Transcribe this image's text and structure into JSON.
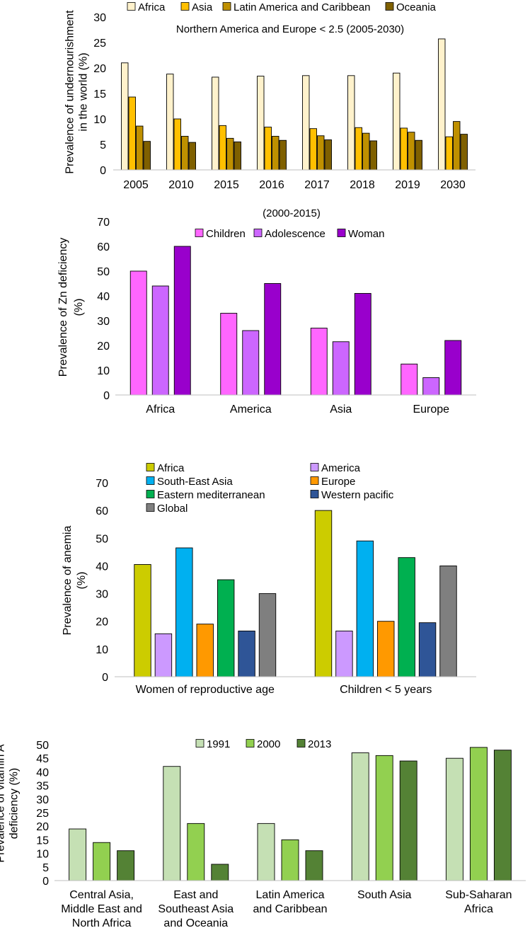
{
  "chart_data": [
    {
      "type": "bar",
      "id": "undernourishment",
      "title": "",
      "annotation": "Northern America and Europe  < 2.5 (2005-2030)",
      "ylabel": "Prevalence of undernourishment in the world (%)",
      "ylabel_lines": [
        "Prevalence of undernourishment",
        "in the world (%)"
      ],
      "xlabel": "",
      "ylim": [
        0,
        30
      ],
      "yticks": [
        0,
        5,
        10,
        15,
        20,
        25,
        30
      ],
      "categories": [
        "2005",
        "2010",
        "2015",
        "2016",
        "2017",
        "2018",
        "2019",
        "2030"
      ],
      "series": [
        {
          "name": "Africa",
          "color": "#FFF2CC",
          "values": [
            21.0,
            18.8,
            18.2,
            18.4,
            18.5,
            18.5,
            19.0,
            25.7
          ]
        },
        {
          "name": "Asia",
          "color": "#FFC000",
          "values": [
            14.3,
            10.0,
            8.7,
            8.4,
            8.1,
            8.3,
            8.2,
            6.5
          ]
        },
        {
          "name": "Latin America and Caribbean",
          "color": "#BF9000",
          "values": [
            8.6,
            6.6,
            6.2,
            6.6,
            6.7,
            7.2,
            7.4,
            9.5
          ]
        },
        {
          "name": "Oceania",
          "color": "#7F6000",
          "values": [
            5.6,
            5.4,
            5.5,
            5.8,
            5.9,
            5.7,
            5.8,
            7.0
          ]
        }
      ]
    },
    {
      "type": "bar",
      "id": "zinc",
      "title": "(2000-2015)",
      "ylabel": "Prevalence of Zn deficiency (%)",
      "ylabel_lines": [
        "Prevalence of Zn deficiency",
        "(%)"
      ],
      "xlabel": "",
      "ylim": [
        0,
        70
      ],
      "yticks": [
        0,
        10,
        20,
        30,
        40,
        50,
        60,
        70
      ],
      "categories": [
        "Africa",
        "America",
        "Asia",
        "Europe"
      ],
      "series": [
        {
          "name": "Children",
          "color": "#FF66FF",
          "values": [
            50,
            33,
            27,
            12.5
          ]
        },
        {
          "name": "Adolescence",
          "color": "#CC66FF",
          "values": [
            44,
            26,
            21.5,
            7
          ]
        },
        {
          "name": "Woman",
          "color": "#9900CC",
          "values": [
            60,
            45,
            41,
            22
          ]
        }
      ]
    },
    {
      "type": "bar",
      "id": "anemia",
      "title": "",
      "ylabel": "Prevalence of anemia (%)",
      "ylabel_lines": [
        "Prevalence of anemia",
        "(%)"
      ],
      "xlabel": "",
      "ylim": [
        0,
        70
      ],
      "yticks": [
        0,
        10,
        20,
        30,
        40,
        50,
        60,
        70
      ],
      "categories": [
        "Women of reproductive age",
        "Children < 5 years"
      ],
      "series": [
        {
          "name": "Africa",
          "color": "#CCCC00",
          "values": [
            40.5,
            60
          ]
        },
        {
          "name": "America",
          "color": "#CC99FF",
          "values": [
            15.5,
            16.5
          ]
        },
        {
          "name": "South-East Asia",
          "color": "#00B0F0",
          "values": [
            46.5,
            49
          ]
        },
        {
          "name": "Europe",
          "color": "#FF9900",
          "values": [
            19,
            20
          ]
        },
        {
          "name": "Eastern mediterranean",
          "color": "#00B050",
          "values": [
            35,
            43
          ]
        },
        {
          "name": "Western pacific",
          "color": "#2F5597",
          "values": [
            16.5,
            19.5
          ]
        },
        {
          "name": "Global",
          "color": "#7F7F7F",
          "values": [
            30,
            40
          ]
        }
      ]
    },
    {
      "type": "bar",
      "id": "vitamin-a",
      "title": "",
      "ylabel": "Prevalence of vitamin A deficiency (%)",
      "ylabel_lines": [
        "Prevalence of vitamin A",
        "deficiency (%)"
      ],
      "xlabel": "",
      "ylim": [
        0,
        50
      ],
      "yticks": [
        0,
        5,
        10,
        15,
        20,
        25,
        30,
        35,
        40,
        45,
        50
      ],
      "categories": [
        "Central Asia, Middle East and North Africa",
        "East and Southeast Asia and Oceania",
        "Latin America and Caribbean",
        "South Asia",
        "Sub-Saharan Africa"
      ],
      "category_lines": [
        [
          "Central Asia,",
          "Middle East and",
          "North Africa"
        ],
        [
          "East and",
          "Southeast Asia",
          "and Oceania"
        ],
        [
          "Latin America",
          "and Caribbean"
        ],
        [
          "South Asia"
        ],
        [
          "Sub-Saharan",
          "Africa"
        ]
      ],
      "series": [
        {
          "name": "1991",
          "color": "#C5E0B4",
          "values": [
            19,
            42,
            21,
            47,
            45
          ]
        },
        {
          "name": "2000",
          "color": "#92D050",
          "values": [
            14,
            21,
            15,
            46,
            49
          ]
        },
        {
          "name": "2013",
          "color": "#548235",
          "values": [
            11,
            6,
            11,
            44,
            48
          ]
        }
      ]
    }
  ]
}
